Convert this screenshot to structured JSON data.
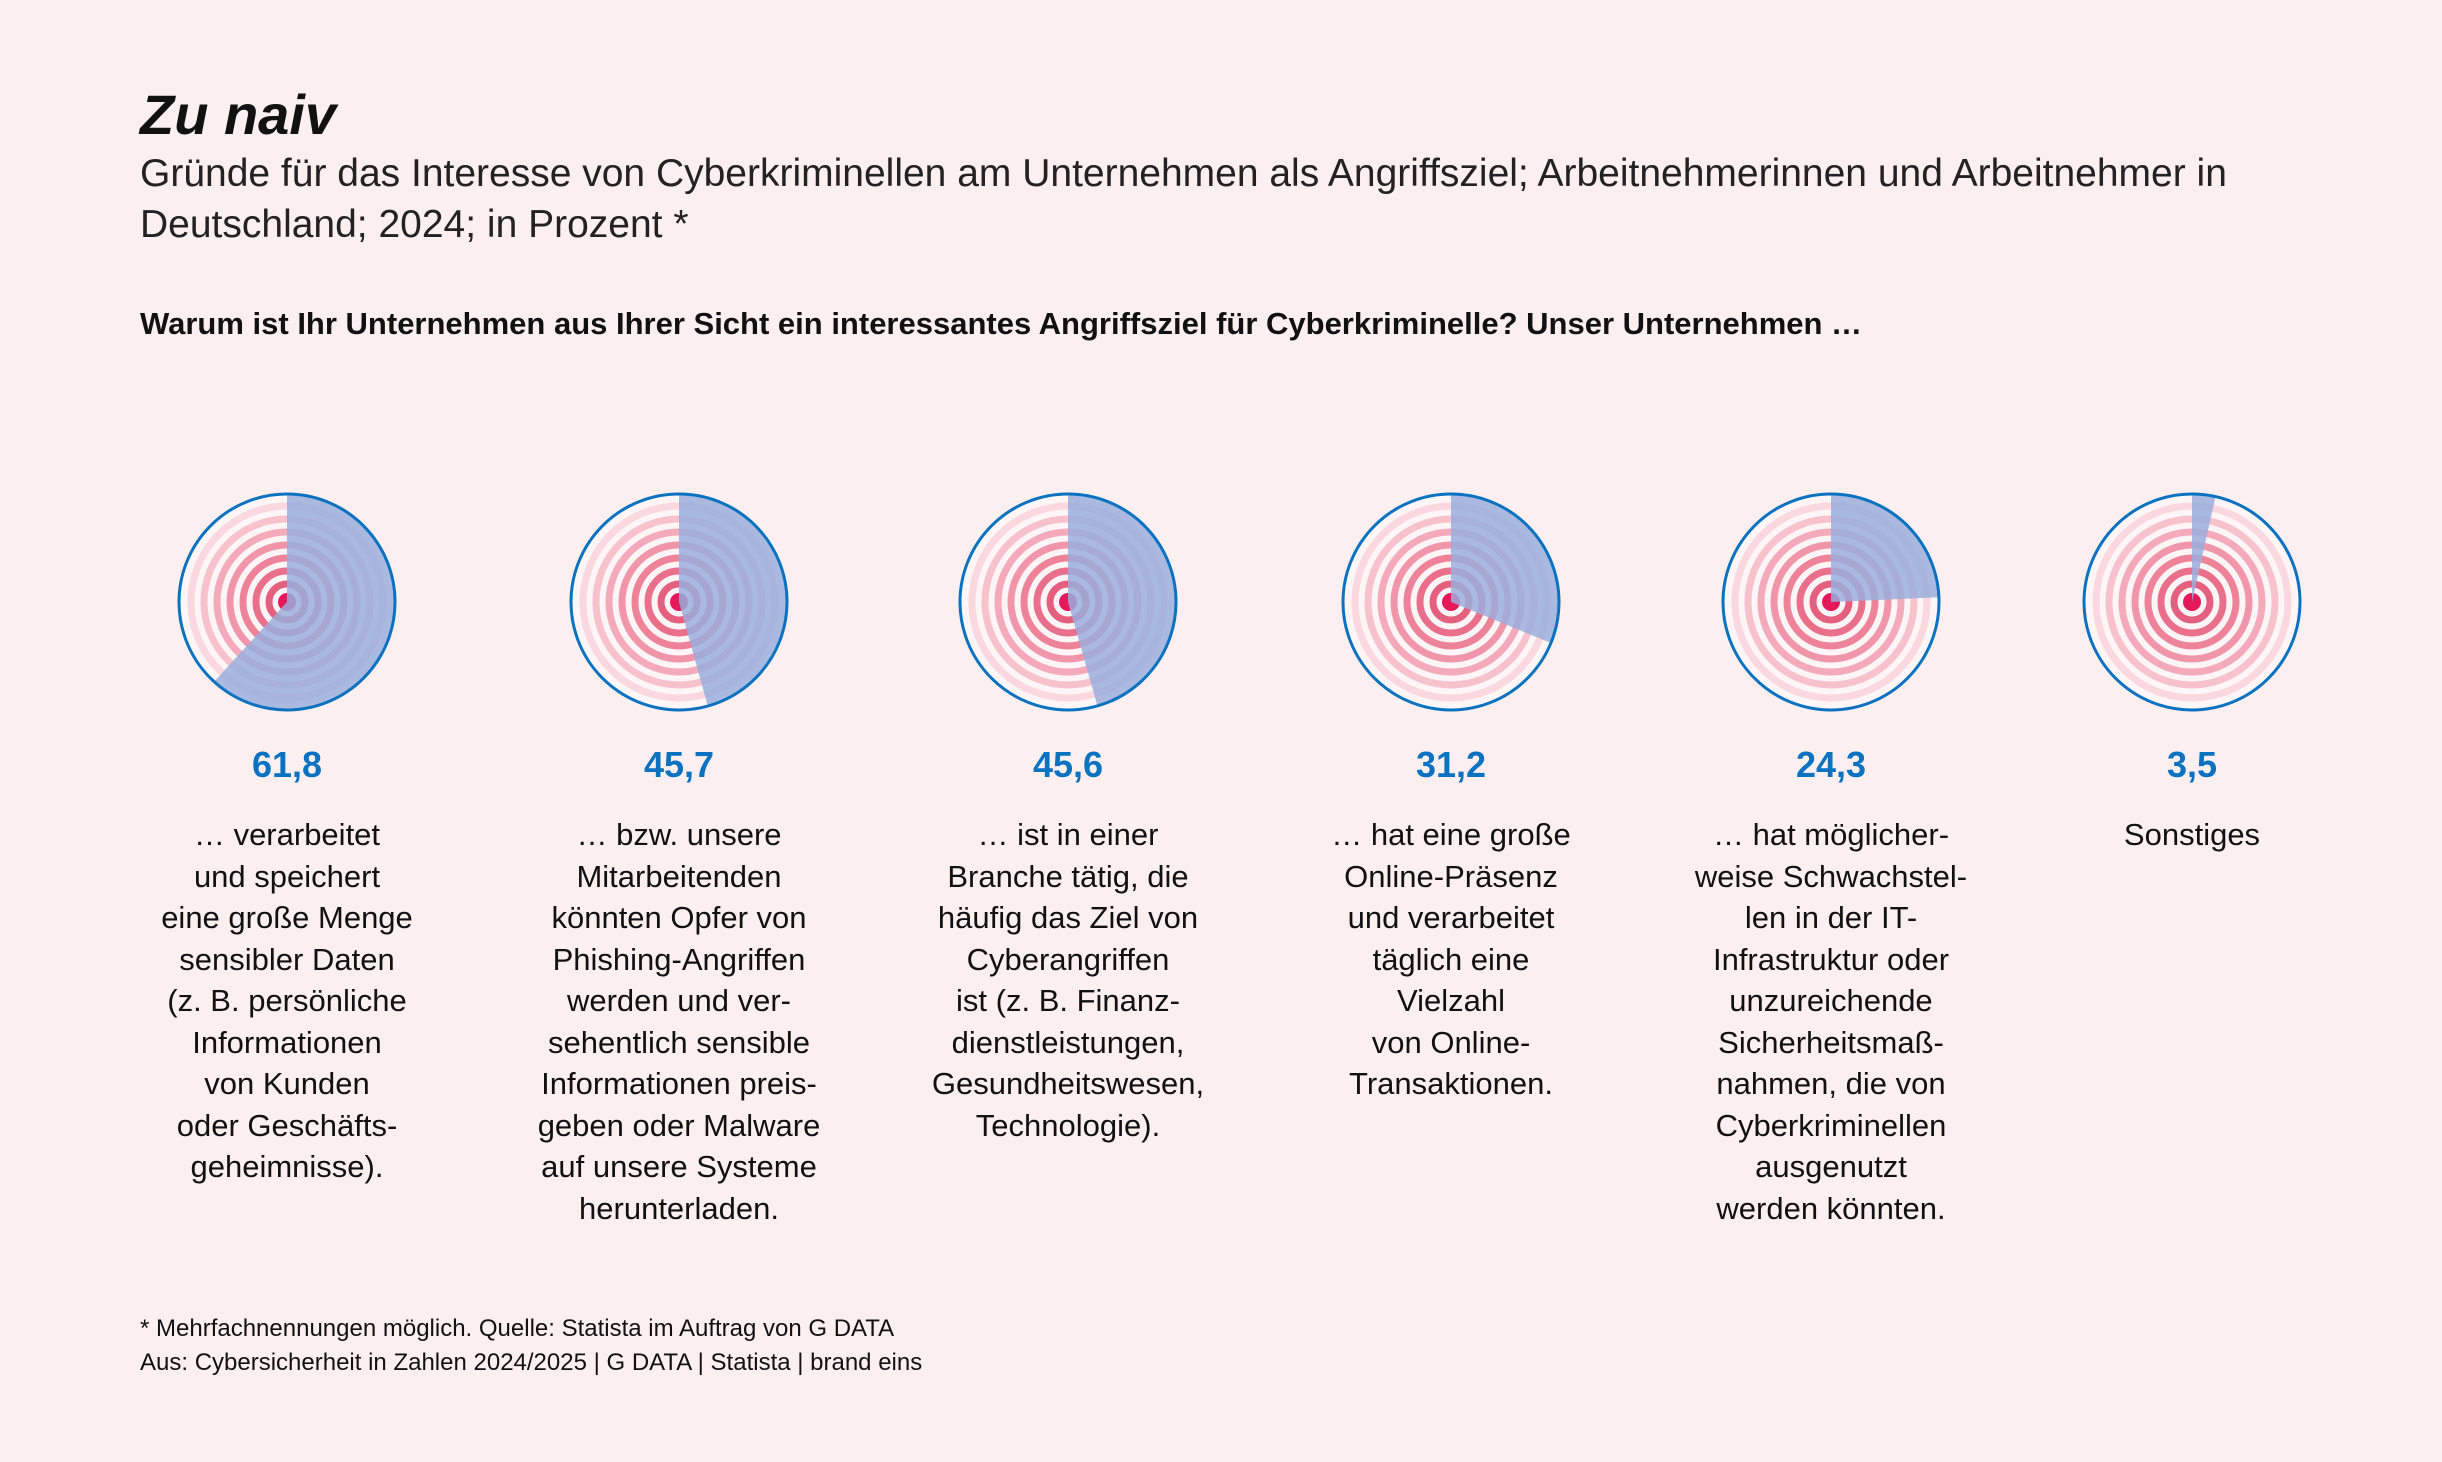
{
  "header": {
    "title": "Zu naiv",
    "subtitle": "Gründe für das Interesse von Cyberkriminellen am Unternehmen als Angriffsziel; Arbeitnehmerinnen und Arbeitnehmer in Deutschland; 2024; in Prozent *",
    "question": "Warum ist Ihr Unternehmen aus Ihrer Sicht ein interessantes Angriffsziel für Cyberkriminelle? Unser Unternehmen …"
  },
  "chart_data": {
    "type": "pie",
    "unit": "Prozent",
    "colors": {
      "sector": "#9aaedc",
      "outline": "#0a72c0",
      "target": "#e5195a",
      "value_text": "#0a72c0"
    },
    "items": [
      {
        "value": 61.8,
        "value_label": "61,8",
        "label": "… verarbeitet\nund speichert\neine große Menge\nsensibler Daten\n(z. B. persönliche\nInformationen\nvon Kunden\noder Geschäfts-\ngeheimnisse)."
      },
      {
        "value": 45.7,
        "value_label": "45,7",
        "label": "… bzw. unsere\nMitarbeitenden\nkönnten Opfer von\nPhishing-Angriffen\nwerden und ver-\nsehentlich sensible\nInformationen preis-\ngeben oder Malware\nauf unsere Systeme\nherunterladen."
      },
      {
        "value": 45.6,
        "value_label": "45,6",
        "label": "… ist in einer\nBranche tätig, die\nhäufig das Ziel von\nCyberangriffen\nist (z. B. Finanz-\ndienstleistungen,\nGesundheitswesen,\nTechnologie)."
      },
      {
        "value": 31.2,
        "value_label": "31,2",
        "label": "… hat eine große\nOnline-Präsenz\nund verarbeitet\ntäglich eine\nVielzahl\nvon Online-\nTransaktionen."
      },
      {
        "value": 24.3,
        "value_label": "24,3",
        "label": "… hat möglicher-\nweise Schwachstel-\nlen in der IT-\nInfrastruktur oder\nunzureichende\nSicherheitsmaß-\nnahmen, die von\nCyberkriminellen\nausgenutzt\nwerden könnten."
      },
      {
        "value": 3.5,
        "value_label": "3,5",
        "label": "Sonstiges"
      }
    ]
  },
  "footer": {
    "note": "* Mehrfachnennungen möglich. Quelle: Statista im Auftrag von G DATA",
    "source": "Aus: Cybersicherheit in Zahlen 2024/2025 | G DATA | Statista | brand eins"
  }
}
